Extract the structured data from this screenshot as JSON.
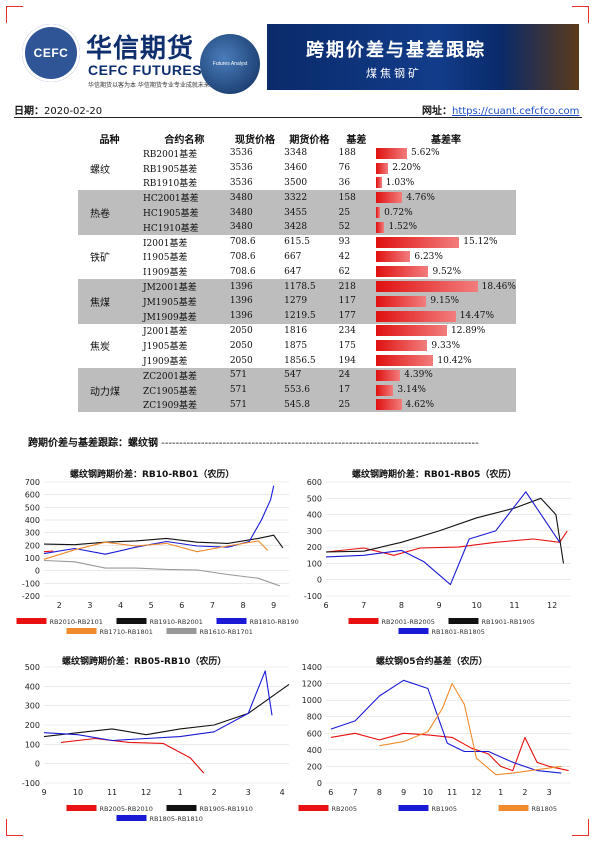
{
  "header": {
    "seal_text": "CEFC",
    "brand_cn": "华信期货",
    "brand_en": "CEFC FUTURES",
    "slogan": "华信期货以客为本 华信期货专业专业成就未来",
    "circle_logo_text": "Futures Analyst",
    "banner_title": "跨期价差与基差跟踪",
    "banner_subtitle": "煤焦钢矿",
    "date_label": "日期：",
    "date_value": "2020-02-20",
    "site_label": "网址：",
    "site_url": "https://cuant.cefcfco.com"
  },
  "basis_table": {
    "headers": [
      "品种",
      "合约名称",
      "现货价格",
      "期货价格",
      "基差",
      "基差率"
    ],
    "groups": [
      {
        "variety": "螺纹",
        "shaded": false,
        "rows": [
          {
            "contract": "RB2001基差",
            "spot": "3536",
            "futures": "3348",
            "basis": "188",
            "rate": "5.62%",
            "rate_value": 5.62
          },
          {
            "contract": "RB1905基差",
            "spot": "3536",
            "futures": "3460",
            "basis": "76",
            "rate": "2.20%",
            "rate_value": 2.2
          },
          {
            "contract": "RB1910基差",
            "spot": "3536",
            "futures": "3500",
            "basis": "36",
            "rate": "1.03%",
            "rate_value": 1.03
          }
        ]
      },
      {
        "variety": "热卷",
        "shaded": true,
        "rows": [
          {
            "contract": "HC2001基差",
            "spot": "3480",
            "futures": "3322",
            "basis": "158",
            "rate": "4.76%",
            "rate_value": 4.76
          },
          {
            "contract": "HC1905基差",
            "spot": "3480",
            "futures": "3455",
            "basis": "25",
            "rate": "0.72%",
            "rate_value": 0.72
          },
          {
            "contract": "HC1910基差",
            "spot": "3480",
            "futures": "3428",
            "basis": "52",
            "rate": "1.52%",
            "rate_value": 1.52
          }
        ]
      },
      {
        "variety": "铁矿",
        "shaded": false,
        "rows": [
          {
            "contract": "I2001基差",
            "spot": "708.6",
            "futures": "615.5",
            "basis": "93",
            "rate": "15.12%",
            "rate_value": 15.12
          },
          {
            "contract": "I1905基差",
            "spot": "708.6",
            "futures": "667",
            "basis": "42",
            "rate": "6.23%",
            "rate_value": 6.23
          },
          {
            "contract": "I1909基差",
            "spot": "708.6",
            "futures": "647",
            "basis": "62",
            "rate": "9.52%",
            "rate_value": 9.52
          }
        ]
      },
      {
        "variety": "焦煤",
        "shaded": true,
        "rows": [
          {
            "contract": "JM2001基差",
            "spot": "1396",
            "futures": "1178.5",
            "basis": "218",
            "rate": "18.46%",
            "rate_value": 18.46
          },
          {
            "contract": "JM1905基差",
            "spot": "1396",
            "futures": "1279",
            "basis": "117",
            "rate": "9.15%",
            "rate_value": 9.15
          },
          {
            "contract": "JM1909基差",
            "spot": "1396",
            "futures": "1219.5",
            "basis": "177",
            "rate": "14.47%",
            "rate_value": 14.47
          }
        ]
      },
      {
        "variety": "焦炭",
        "shaded": false,
        "rows": [
          {
            "contract": "J2001基差",
            "spot": "2050",
            "futures": "1816",
            "basis": "234",
            "rate": "12.89%",
            "rate_value": 12.89
          },
          {
            "contract": "J1905基差",
            "spot": "2050",
            "futures": "1875",
            "basis": "175",
            "rate": "9.33%",
            "rate_value": 9.33
          },
          {
            "contract": "J1909基差",
            "spot": "2050",
            "futures": "1856.5",
            "basis": "194",
            "rate": "10.42%",
            "rate_value": 10.42
          }
        ]
      },
      {
        "variety": "动力煤",
        "shaded": true,
        "rows": [
          {
            "contract": "ZC2001基差",
            "spot": "571",
            "futures": "547",
            "basis": "24",
            "rate": "4.39%",
            "rate_value": 4.39
          },
          {
            "contract": "ZC1905基差",
            "spot": "571",
            "futures": "553.6",
            "basis": "17",
            "rate": "3.14%",
            "rate_value": 3.14
          },
          {
            "contract": "ZC1909基差",
            "spot": "571",
            "futures": "545.8",
            "basis": "25",
            "rate": "4.62%",
            "rate_value": 4.62
          }
        ]
      }
    ]
  },
  "section_title": "跨期价差与基差跟踪：螺纹钢",
  "colors": {
    "red": "#e81010",
    "black": "#111111",
    "blue": "#1a1ad6",
    "orange": "#f08a2c",
    "gray": "#999999",
    "rate_bar": "#e01010"
  },
  "chart_data": [
    {
      "type": "line",
      "title": "螺纹钢跨期价差：RB10-RB01（农历）",
      "ylim": [
        -200,
        700
      ],
      "yticks": [
        -200,
        -100,
        0,
        100,
        200,
        300,
        400,
        500,
        600,
        700
      ],
      "xlim": [
        1.5,
        9.5
      ],
      "xticks": [
        2,
        3,
        4,
        5,
        6,
        7,
        8,
        9
      ],
      "series": [
        {
          "name": "RB2010-RB2101",
          "color": "#e81010",
          "points": [
            [
              1.5,
              150
            ],
            [
              1.8,
              155
            ]
          ]
        },
        {
          "name": "RB1910-RB2001",
          "color": "#111111",
          "points": [
            [
              1.5,
              210
            ],
            [
              2.5,
              205
            ],
            [
              3.5,
              225
            ],
            [
              4.5,
              235
            ],
            [
              5.5,
              255
            ],
            [
              6.5,
              225
            ],
            [
              7.5,
              215
            ],
            [
              8.5,
              255
            ],
            [
              9.0,
              280
            ],
            [
              9.3,
              180
            ]
          ]
        },
        {
          "name": "RB1810-RB1901",
          "color": "#1a1ad6",
          "points": [
            [
              1.5,
              135
            ],
            [
              2.5,
              175
            ],
            [
              3.5,
              130
            ],
            [
              4.5,
              185
            ],
            [
              5.5,
              230
            ],
            [
              6.5,
              195
            ],
            [
              7.5,
              185
            ],
            [
              8.2,
              230
            ],
            [
              8.6,
              400
            ],
            [
              8.9,
              560
            ],
            [
              9.0,
              670
            ]
          ]
        },
        {
          "name": "RB1710-RB1801",
          "color": "#f08a2c",
          "points": [
            [
              1.5,
              90
            ],
            [
              2.5,
              165
            ],
            [
              3.5,
              225
            ],
            [
              4.5,
              195
            ],
            [
              5.5,
              215
            ],
            [
              6.5,
              150
            ],
            [
              7.5,
              195
            ],
            [
              8.5,
              235
            ],
            [
              8.8,
              160
            ]
          ]
        },
        {
          "name": "RB1610-RB1701",
          "color": "#999999",
          "points": [
            [
              1.5,
              80
            ],
            [
              2.5,
              70
            ],
            [
              3.5,
              20
            ],
            [
              4.5,
              20
            ],
            [
              5.5,
              10
            ],
            [
              6.5,
              5
            ],
            [
              7.5,
              -30
            ],
            [
              8.5,
              -60
            ],
            [
              9.2,
              -120
            ]
          ]
        }
      ],
      "legend": [
        [
          "RB2010-RB2101",
          "RB1910-RB2001",
          "RB1810-RB1901"
        ],
        [
          "RB1710-RB1801",
          "RB1610-RB1701"
        ]
      ]
    },
    {
      "type": "line",
      "title": "螺纹钢跨期价差：RB01-RB05（农历）",
      "ylim": [
        -100,
        600
      ],
      "yticks": [
        -100,
        0,
        100,
        200,
        300,
        400,
        500,
        600
      ],
      "xlim": [
        6,
        12.5
      ],
      "xticks": [
        6,
        7,
        8,
        9,
        10,
        11,
        12
      ],
      "series": [
        {
          "name": "RB2001-RB2005",
          "color": "#e81010",
          "points": [
            [
              6,
              170
            ],
            [
              7,
              195
            ],
            [
              7.8,
              150
            ],
            [
              8.5,
              195
            ],
            [
              9.5,
              200
            ],
            [
              10.5,
              230
            ],
            [
              11.5,
              250
            ],
            [
              12.2,
              230
            ],
            [
              12.4,
              300
            ]
          ]
        },
        {
          "name": "RB1901-RB1905",
          "color": "#111111",
          "points": [
            [
              6,
              170
            ],
            [
              7,
              175
            ],
            [
              8,
              230
            ],
            [
              9,
              300
            ],
            [
              10,
              380
            ],
            [
              11,
              440
            ],
            [
              11.7,
              500
            ],
            [
              12.1,
              400
            ],
            [
              12.3,
              100
            ]
          ]
        },
        {
          "name": "RB1801-RB1805",
          "color": "#1a1ad6",
          "points": [
            [
              6,
              140
            ],
            [
              7,
              150
            ],
            [
              8,
              180
            ],
            [
              8.6,
              110
            ],
            [
              9.3,
              -30
            ],
            [
              9.8,
              250
            ],
            [
              10.5,
              300
            ],
            [
              11.3,
              540
            ],
            [
              12.2,
              230
            ]
          ]
        }
      ],
      "legend": [
        [
          "RB2001-RB2005",
          "RB1901-RB1905"
        ],
        [
          "RB1801-RB1805"
        ]
      ]
    },
    {
      "type": "line",
      "title": "螺纹钢跨期价差：RB05-RB10（农历）",
      "ylim": [
        -100,
        500
      ],
      "yticks": [
        -100,
        0,
        100,
        200,
        300,
        400,
        500
      ],
      "xlim": [
        9,
        16.2
      ],
      "xticklabels": [
        "9",
        "10",
        "11",
        "12",
        "1",
        "2",
        "3",
        "4"
      ],
      "series": [
        {
          "name": "RB2005-RB2010",
          "color": "#e81010",
          "points": [
            [
              9.5,
              110
            ],
            [
              10.5,
              130
            ],
            [
              11.5,
              110
            ],
            [
              12.5,
              105
            ],
            [
              13.3,
              30
            ],
            [
              13.7,
              -50
            ]
          ]
        },
        {
          "name": "RB1905-RB1910",
          "color": "#111111",
          "points": [
            [
              9,
              140
            ],
            [
              10,
              160
            ],
            [
              11,
              180
            ],
            [
              12,
              150
            ],
            [
              13,
              180
            ],
            [
              14,
              200
            ],
            [
              15,
              260
            ],
            [
              15.8,
              360
            ],
            [
              16.2,
              410
            ]
          ]
        },
        {
          "name": "RB1805-RB1810",
          "color": "#1a1ad6",
          "points": [
            [
              9,
              160
            ],
            [
              10,
              150
            ],
            [
              11,
              120
            ],
            [
              12,
              130
            ],
            [
              13,
              140
            ],
            [
              14,
              165
            ],
            [
              15,
              260
            ],
            [
              15.5,
              480
            ],
            [
              15.7,
              250
            ]
          ]
        }
      ],
      "legend": [
        [
          "RB2005-RB2010",
          "RB1905-RB1910"
        ],
        [
          "RB1805-RB1810"
        ]
      ]
    },
    {
      "type": "line",
      "title": "螺纹钢05合约基差（农历）",
      "ylim": [
        0,
        1400
      ],
      "yticks": [
        0,
        200,
        400,
        600,
        800,
        1000,
        1200,
        1400
      ],
      "xlim": [
        5.8,
        15.9
      ],
      "xticklabels": [
        "6",
        "7",
        "8",
        "9",
        "10",
        "11",
        "12",
        "1",
        "2",
        "3"
      ],
      "series": [
        {
          "name": "RB2005",
          "color": "#e81010",
          "points": [
            [
              6,
              550
            ],
            [
              7,
              600
            ],
            [
              8,
              520
            ],
            [
              9,
              600
            ],
            [
              10,
              580
            ],
            [
              11,
              550
            ],
            [
              11.8,
              420
            ],
            [
              12.5,
              350
            ],
            [
              13,
              200
            ],
            [
              13.5,
              150
            ],
            [
              14,
              550
            ],
            [
              14.5,
              250
            ],
            [
              15,
              200
            ],
            [
              15.8,
              150
            ]
          ]
        },
        {
          "name": "RB1905",
          "color": "#1a1ad6",
          "points": [
            [
              6,
              650
            ],
            [
              7,
              750
            ],
            [
              8,
              1050
            ],
            [
              9,
              1240
            ],
            [
              10,
              1140
            ],
            [
              10.8,
              480
            ],
            [
              11.5,
              380
            ],
            [
              12.5,
              380
            ],
            [
              13.5,
              250
            ],
            [
              14.5,
              150
            ],
            [
              15.5,
              120
            ]
          ]
        },
        {
          "name": "RB1805",
          "color": "#f08a2c",
          "points": [
            [
              8,
              450
            ],
            [
              9,
              500
            ],
            [
              10,
              620
            ],
            [
              10.6,
              900
            ],
            [
              11,
              1200
            ],
            [
              11.5,
              950
            ],
            [
              12,
              300
            ],
            [
              12.8,
              100
            ],
            [
              13.5,
              120
            ],
            [
              14.5,
              160
            ],
            [
              15.5,
              200
            ]
          ]
        }
      ],
      "legend": [
        [
          "RB2005",
          "RB1905",
          "RB1805"
        ]
      ]
    }
  ]
}
